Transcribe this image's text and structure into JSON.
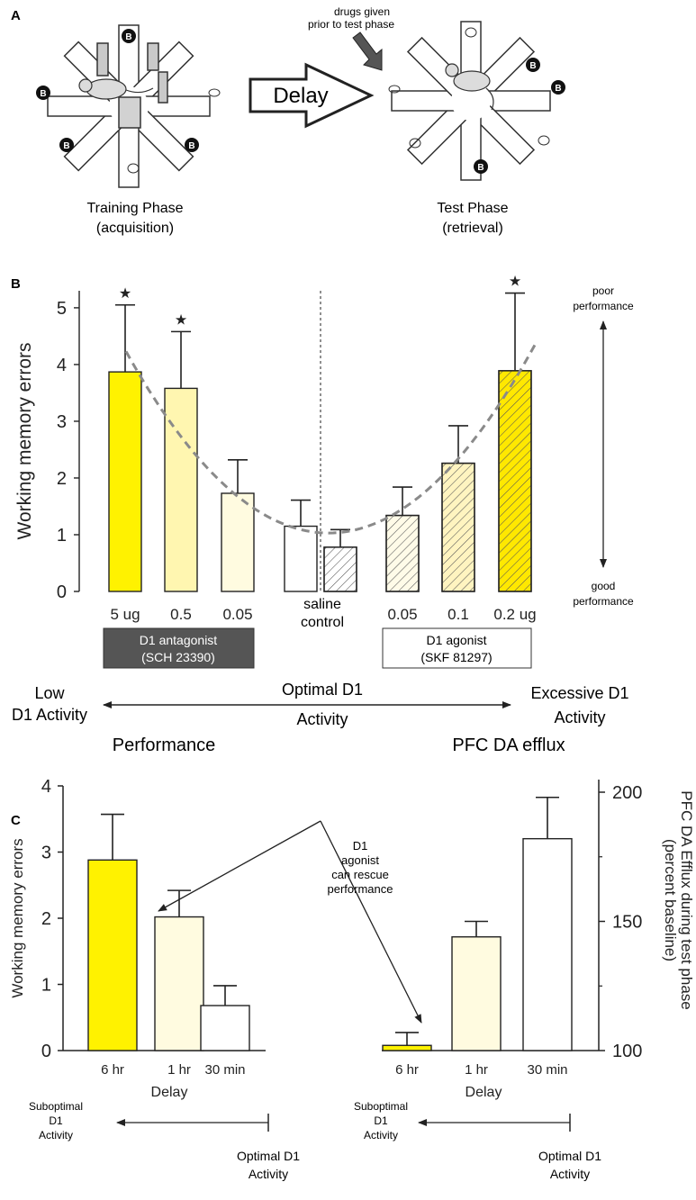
{
  "panelA": {
    "letter": "A",
    "training_label": "Training Phase",
    "training_sub": "(acquisition)",
    "test_label": "Test Phase",
    "test_sub": "(retrieval)",
    "delay_label": "Delay",
    "drug_note_1": "drugs given",
    "drug_note_2": "prior to test phase",
    "bait_mark": "B"
  },
  "panelB": {
    "letter": "B",
    "annot_poor_1": "poor",
    "annot_poor_2": "performance",
    "annot_good_1": "good",
    "annot_good_2": "performance",
    "antagonist_1": "D1 antagonist",
    "antagonist_2": "(SCH 23390)",
    "agonist_1": "D1 agonist",
    "agonist_2": "(SKF 81297)",
    "saline_1": "saline",
    "saline_2": "control",
    "low_1": "Low",
    "low_2": "D1 Activity",
    "optimal_1": "Optimal D1",
    "optimal_2": "Activity",
    "excess_1": "Excessive D1",
    "excess_2": "Activity"
  },
  "panelC": {
    "letter": "C",
    "perf_title": "Performance",
    "efflux_title": "PFC DA efflux",
    "rescue_1": "D1",
    "rescue_2": "agonist",
    "rescue_3": "can rescue",
    "rescue_4": "performance",
    "subopt_1": "Suboptimal",
    "subopt_2": "D1",
    "subopt_3": "Activity",
    "opt_1": "Optimal D1",
    "opt_2": "Activity"
  },
  "chart_data": [
    {
      "id": "B",
      "type": "bar",
      "ylabel": "Working memory errors",
      "ylim": [
        0,
        5.3
      ],
      "yticks": [
        0,
        1,
        2,
        3,
        4,
        5
      ],
      "categories": [
        "5 ug",
        "0.5",
        "0.05",
        "",
        "",
        "0.05",
        "0.1",
        "0.2 ug"
      ],
      "values": [
        3.87,
        3.58,
        1.73,
        1.15,
        0.78,
        1.34,
        2.26,
        3.89
      ],
      "errors": [
        1.18,
        1.0,
        0.59,
        0.46,
        0.31,
        0.5,
        0.66,
        1.37
      ],
      "significant": [
        true,
        true,
        false,
        false,
        false,
        false,
        false,
        true
      ],
      "star": "★",
      "colors": [
        "#fff200",
        "#fff6b0",
        "#fffbe0",
        "#ffffff",
        "#ffffff",
        "#fffbe8",
        "#fff4c0",
        "#ffe800"
      ],
      "hatched": [
        false,
        false,
        false,
        false,
        true,
        true,
        true,
        true
      ],
      "trend": "dashed U-shaped curve"
    },
    {
      "id": "C-performance",
      "type": "bar",
      "ylabel": "Working memory errors",
      "xlabel": "Delay",
      "ylim": [
        0,
        4
      ],
      "yticks": [
        0,
        1,
        2,
        3,
        4
      ],
      "categories": [
        "6 hr",
        "1 hr",
        "30 min"
      ],
      "values": [
        2.88,
        2.02,
        0.68
      ],
      "errors": [
        0.69,
        0.4,
        0.3
      ],
      "colors": [
        "#fff200",
        "#fffbe0",
        "#ffffff"
      ]
    },
    {
      "id": "C-efflux",
      "type": "bar",
      "ylabel_1": "PFC DA Efflux during test phase",
      "ylabel_2": "(percent baseline)",
      "xlabel": "Delay",
      "ylim": [
        100,
        200
      ],
      "yticks": [
        100,
        150,
        200
      ],
      "categories": [
        "6 hr",
        "1 hr",
        "30 min"
      ],
      "values": [
        102,
        144,
        182
      ],
      "errors": [
        5,
        6,
        16
      ],
      "colors": [
        "#fff200",
        "#fffbe0",
        "#ffffff"
      ]
    }
  ]
}
